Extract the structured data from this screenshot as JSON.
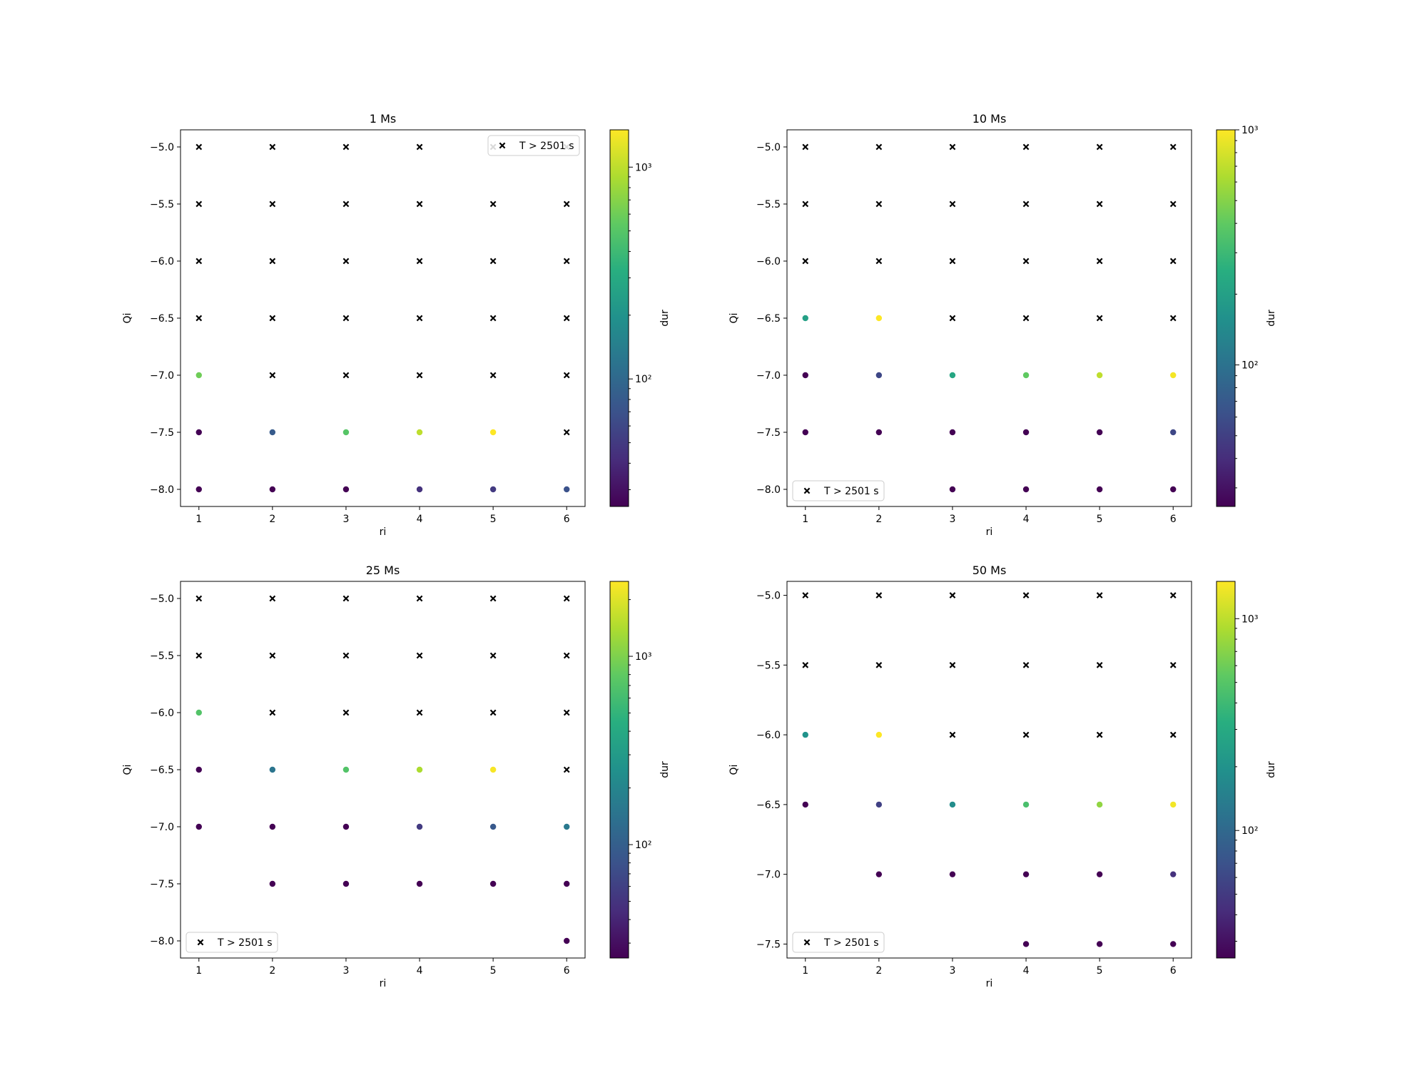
{
  "colorbar_label": "dur",
  "legend_label": "T > 2501 s",
  "x_label": "ri",
  "y_label": "Qi",
  "chart_data": [
    {
      "type": "scatter",
      "title": "1 Ms",
      "xlabel": "ri",
      "ylabel": "Qi",
      "xlim": [
        0.75,
        6.25
      ],
      "ylim": [
        -8.15,
        -4.85
      ],
      "x_ticks": [
        1,
        2,
        3,
        4,
        5,
        6
      ],
      "y_ticks": [
        -8.0,
        -7.5,
        -7.0,
        -6.5,
        -6.0,
        -5.5,
        -5.0
      ],
      "colorbar": {
        "label": "dur",
        "scale": "log",
        "range": [
          25,
          1500
        ],
        "ticks": [
          100,
          1000
        ],
        "tick_labels": [
          "10²",
          "10³"
        ]
      },
      "legend": {
        "label": "T > 2501 s",
        "loc": "upper right"
      },
      "finished_runs": [
        {
          "x": 1,
          "y": -7.0,
          "dur": 600
        },
        {
          "x": 1,
          "y": -7.5,
          "dur": 25
        },
        {
          "x": 2,
          "y": -7.5,
          "dur": 80
        },
        {
          "x": 3,
          "y": -7.5,
          "dur": 500
        },
        {
          "x": 4,
          "y": -7.5,
          "dur": 1000
        },
        {
          "x": 5,
          "y": -7.5,
          "dur": 1500
        },
        {
          "x": 1,
          "y": -8.0,
          "dur": 25
        },
        {
          "x": 2,
          "y": -8.0,
          "dur": 25
        },
        {
          "x": 3,
          "y": -8.0,
          "dur": 25
        },
        {
          "x": 4,
          "y": -8.0,
          "dur": 45
        },
        {
          "x": 5,
          "y": -8.0,
          "dur": 50
        },
        {
          "x": 6,
          "y": -8.0,
          "dur": 70
        }
      ],
      "timed_out": [
        {
          "x": 1,
          "y": -5.0
        },
        {
          "x": 2,
          "y": -5.0
        },
        {
          "x": 3,
          "y": -5.0
        },
        {
          "x": 4,
          "y": -5.0
        },
        {
          "x": 5,
          "y": -5.0
        },
        {
          "x": 6,
          "y": -5.0
        },
        {
          "x": 1,
          "y": -5.5
        },
        {
          "x": 2,
          "y": -5.5
        },
        {
          "x": 3,
          "y": -5.5
        },
        {
          "x": 4,
          "y": -5.5
        },
        {
          "x": 5,
          "y": -5.5
        },
        {
          "x": 6,
          "y": -5.5
        },
        {
          "x": 1,
          "y": -6.0
        },
        {
          "x": 2,
          "y": -6.0
        },
        {
          "x": 3,
          "y": -6.0
        },
        {
          "x": 4,
          "y": -6.0
        },
        {
          "x": 5,
          "y": -6.0
        },
        {
          "x": 6,
          "y": -6.0
        },
        {
          "x": 1,
          "y": -6.5
        },
        {
          "x": 2,
          "y": -6.5
        },
        {
          "x": 3,
          "y": -6.5
        },
        {
          "x": 4,
          "y": -6.5
        },
        {
          "x": 5,
          "y": -6.5
        },
        {
          "x": 6,
          "y": -6.5
        },
        {
          "x": 2,
          "y": -7.0
        },
        {
          "x": 3,
          "y": -7.0
        },
        {
          "x": 4,
          "y": -7.0
        },
        {
          "x": 5,
          "y": -7.0
        },
        {
          "x": 6,
          "y": -7.0
        },
        {
          "x": 6,
          "y": -7.5
        }
      ]
    },
    {
      "type": "scatter",
      "title": "10 Ms",
      "xlabel": "ri",
      "ylabel": "Qi",
      "xlim": [
        0.75,
        6.25
      ],
      "ylim": [
        -8.15,
        -4.85
      ],
      "x_ticks": [
        1,
        2,
        3,
        4,
        5,
        6
      ],
      "y_ticks": [
        -8.0,
        -7.5,
        -7.0,
        -6.5,
        -6.0,
        -5.5,
        -5.0
      ],
      "colorbar": {
        "label": "dur",
        "scale": "log",
        "range": [
          25,
          1000
        ],
        "ticks": [
          100,
          1000
        ],
        "tick_labels": [
          "10²",
          "10³"
        ]
      },
      "legend": {
        "label": "T > 2501 s",
        "loc": "lower left"
      },
      "finished_runs": [
        {
          "x": 1,
          "y": -6.5,
          "dur": 200
        },
        {
          "x": 2,
          "y": -6.5,
          "dur": 1000
        },
        {
          "x": 1,
          "y": -7.0,
          "dur": 25
        },
        {
          "x": 2,
          "y": -7.0,
          "dur": 55
        },
        {
          "x": 3,
          "y": -7.0,
          "dur": 220
        },
        {
          "x": 4,
          "y": -7.0,
          "dur": 400
        },
        {
          "x": 5,
          "y": -7.0,
          "dur": 700
        },
        {
          "x": 6,
          "y": -7.0,
          "dur": 950
        },
        {
          "x": 1,
          "y": -7.5,
          "dur": 25
        },
        {
          "x": 2,
          "y": -7.5,
          "dur": 25
        },
        {
          "x": 3,
          "y": -7.5,
          "dur": 25
        },
        {
          "x": 4,
          "y": -7.5,
          "dur": 25
        },
        {
          "x": 5,
          "y": -7.5,
          "dur": 25
        },
        {
          "x": 6,
          "y": -7.5,
          "dur": 55
        },
        {
          "x": 3,
          "y": -8.0,
          "dur": 25
        },
        {
          "x": 4,
          "y": -8.0,
          "dur": 25
        },
        {
          "x": 5,
          "y": -8.0,
          "dur": 25
        },
        {
          "x": 6,
          "y": -8.0,
          "dur": 25
        }
      ],
      "timed_out": [
        {
          "x": 1,
          "y": -5.0
        },
        {
          "x": 2,
          "y": -5.0
        },
        {
          "x": 3,
          "y": -5.0
        },
        {
          "x": 4,
          "y": -5.0
        },
        {
          "x": 5,
          "y": -5.0
        },
        {
          "x": 6,
          "y": -5.0
        },
        {
          "x": 1,
          "y": -5.5
        },
        {
          "x": 2,
          "y": -5.5
        },
        {
          "x": 3,
          "y": -5.5
        },
        {
          "x": 4,
          "y": -5.5
        },
        {
          "x": 5,
          "y": -5.5
        },
        {
          "x": 6,
          "y": -5.5
        },
        {
          "x": 1,
          "y": -6.0
        },
        {
          "x": 2,
          "y": -6.0
        },
        {
          "x": 3,
          "y": -6.0
        },
        {
          "x": 4,
          "y": -6.0
        },
        {
          "x": 5,
          "y": -6.0
        },
        {
          "x": 6,
          "y": -6.0
        },
        {
          "x": 3,
          "y": -6.5
        },
        {
          "x": 4,
          "y": -6.5
        },
        {
          "x": 5,
          "y": -6.5
        },
        {
          "x": 6,
          "y": -6.5
        }
      ]
    },
    {
      "type": "scatter",
      "title": "25 Ms",
      "xlabel": "ri",
      "ylabel": "Qi",
      "xlim": [
        0.75,
        6.25
      ],
      "ylim": [
        -8.15,
        -4.85
      ],
      "x_ticks": [
        1,
        2,
        3,
        4,
        5,
        6
      ],
      "y_ticks": [
        -8.0,
        -7.5,
        -7.0,
        -6.5,
        -6.0,
        -5.5,
        -5.0
      ],
      "colorbar": {
        "label": "dur",
        "scale": "log",
        "range": [
          25,
          2500
        ],
        "ticks": [
          100,
          1000
        ],
        "tick_labels": [
          "10²",
          "10³"
        ]
      },
      "legend": {
        "label": "T > 2501 s",
        "loc": "lower left"
      },
      "finished_runs": [
        {
          "x": 1,
          "y": -6.0,
          "dur": 700
        },
        {
          "x": 1,
          "y": -6.5,
          "dur": 25
        },
        {
          "x": 2,
          "y": -6.5,
          "dur": 150
        },
        {
          "x": 3,
          "y": -6.5,
          "dur": 700
        },
        {
          "x": 4,
          "y": -6.5,
          "dur": 1400
        },
        {
          "x": 5,
          "y": -6.5,
          "dur": 2400
        },
        {
          "x": 1,
          "y": -7.0,
          "dur": 25
        },
        {
          "x": 2,
          "y": -7.0,
          "dur": 25
        },
        {
          "x": 3,
          "y": -7.0,
          "dur": 25
        },
        {
          "x": 4,
          "y": -7.0,
          "dur": 55
        },
        {
          "x": 5,
          "y": -7.0,
          "dur": 90
        },
        {
          "x": 6,
          "y": -7.0,
          "dur": 160
        },
        {
          "x": 2,
          "y": -7.5,
          "dur": 25
        },
        {
          "x": 3,
          "y": -7.5,
          "dur": 25
        },
        {
          "x": 4,
          "y": -7.5,
          "dur": 25
        },
        {
          "x": 5,
          "y": -7.5,
          "dur": 25
        },
        {
          "x": 6,
          "y": -7.5,
          "dur": 25
        },
        {
          "x": 6,
          "y": -8.0,
          "dur": 25
        }
      ],
      "timed_out": [
        {
          "x": 1,
          "y": -5.0
        },
        {
          "x": 2,
          "y": -5.0
        },
        {
          "x": 3,
          "y": -5.0
        },
        {
          "x": 4,
          "y": -5.0
        },
        {
          "x": 5,
          "y": -5.0
        },
        {
          "x": 6,
          "y": -5.0
        },
        {
          "x": 1,
          "y": -5.5
        },
        {
          "x": 2,
          "y": -5.5
        },
        {
          "x": 3,
          "y": -5.5
        },
        {
          "x": 4,
          "y": -5.5
        },
        {
          "x": 5,
          "y": -5.5
        },
        {
          "x": 6,
          "y": -5.5
        },
        {
          "x": 2,
          "y": -6.0
        },
        {
          "x": 3,
          "y": -6.0
        },
        {
          "x": 4,
          "y": -6.0
        },
        {
          "x": 5,
          "y": -6.0
        },
        {
          "x": 6,
          "y": -6.0
        },
        {
          "x": 6,
          "y": -6.5
        }
      ]
    },
    {
      "type": "scatter",
      "title": "50 Ms",
      "xlabel": "ri",
      "ylabel": "Qi",
      "xlim": [
        0.75,
        6.25
      ],
      "ylim": [
        -7.6,
        -4.9
      ],
      "x_ticks": [
        1,
        2,
        3,
        4,
        5,
        6
      ],
      "y_ticks": [
        -7.5,
        -7.0,
        -6.5,
        -6.0,
        -5.5,
        -5.0
      ],
      "colorbar": {
        "label": "dur",
        "scale": "log",
        "range": [
          25,
          1500
        ],
        "ticks": [
          100,
          1000
        ],
        "tick_labels": [
          "10²",
          "10³"
        ]
      },
      "legend": {
        "label": "T > 2501 s",
        "loc": "lower left"
      },
      "finished_runs": [
        {
          "x": 1,
          "y": -6.0,
          "dur": 200
        },
        {
          "x": 2,
          "y": -6.0,
          "dur": 1500
        },
        {
          "x": 1,
          "y": -6.5,
          "dur": 25
        },
        {
          "x": 2,
          "y": -6.5,
          "dur": 55
        },
        {
          "x": 3,
          "y": -6.5,
          "dur": 180
        },
        {
          "x": 4,
          "y": -6.5,
          "dur": 450
        },
        {
          "x": 5,
          "y": -6.5,
          "dur": 750
        },
        {
          "x": 6,
          "y": -6.5,
          "dur": 1400
        },
        {
          "x": 2,
          "y": -7.0,
          "dur": 25
        },
        {
          "x": 3,
          "y": -7.0,
          "dur": 25
        },
        {
          "x": 4,
          "y": -7.0,
          "dur": 25
        },
        {
          "x": 5,
          "y": -7.0,
          "dur": 25
        },
        {
          "x": 6,
          "y": -7.0,
          "dur": 45
        },
        {
          "x": 4,
          "y": -7.5,
          "dur": 25
        },
        {
          "x": 5,
          "y": -7.5,
          "dur": 25
        },
        {
          "x": 6,
          "y": -7.5,
          "dur": 25
        }
      ],
      "timed_out": [
        {
          "x": 1,
          "y": -5.0
        },
        {
          "x": 2,
          "y": -5.0
        },
        {
          "x": 3,
          "y": -5.0
        },
        {
          "x": 4,
          "y": -5.0
        },
        {
          "x": 5,
          "y": -5.0
        },
        {
          "x": 6,
          "y": -5.0
        },
        {
          "x": 1,
          "y": -5.5
        },
        {
          "x": 2,
          "y": -5.5
        },
        {
          "x": 3,
          "y": -5.5
        },
        {
          "x": 4,
          "y": -5.5
        },
        {
          "x": 5,
          "y": -5.5
        },
        {
          "x": 6,
          "y": -5.5
        },
        {
          "x": 3,
          "y": -6.0
        },
        {
          "x": 4,
          "y": -6.0
        },
        {
          "x": 5,
          "y": -6.0
        },
        {
          "x": 6,
          "y": -6.0
        }
      ]
    }
  ]
}
